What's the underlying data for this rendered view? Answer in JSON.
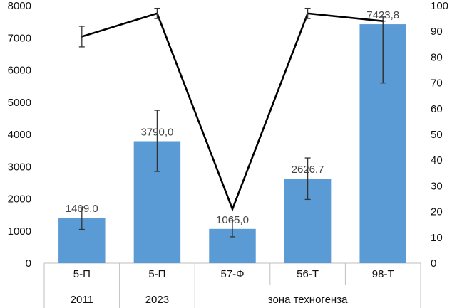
{
  "chart_data": {
    "type": "bar",
    "categories": [
      "5-П",
      "5-П",
      "57-Ф",
      "56-Т",
      "98-Т"
    ],
    "group_labels": [
      "2011",
      "2023",
      "зона техногенза"
    ],
    "series": [
      {
        "type": "bar",
        "axis": "left",
        "values": [
          1409.0,
          3790.0,
          1065.0,
          2626.7,
          7423.8
        ],
        "value_labels": [
          "1409,0",
          "3790,0",
          "1065,0",
          "2626,7",
          "7423,8"
        ],
        "error_low": [
          1050,
          2850,
          820,
          1980,
          5600
        ],
        "error_high": [
          1720,
          4750,
          1320,
          3270,
          7650
        ],
        "color": "#5b9bd5"
      },
      {
        "type": "line",
        "axis": "right",
        "values": [
          88,
          97,
          21,
          97,
          94
        ],
        "error_low": [
          84,
          95,
          21,
          95,
          70
        ],
        "error_high": [
          92,
          99,
          21,
          99,
          94
        ],
        "color": "#000000"
      }
    ],
    "y_left": {
      "min": 0,
      "max": 8000,
      "step": 1000
    },
    "y_right": {
      "min": 0,
      "max": 100,
      "step": 10
    },
    "grid": false,
    "legend": "none"
  }
}
